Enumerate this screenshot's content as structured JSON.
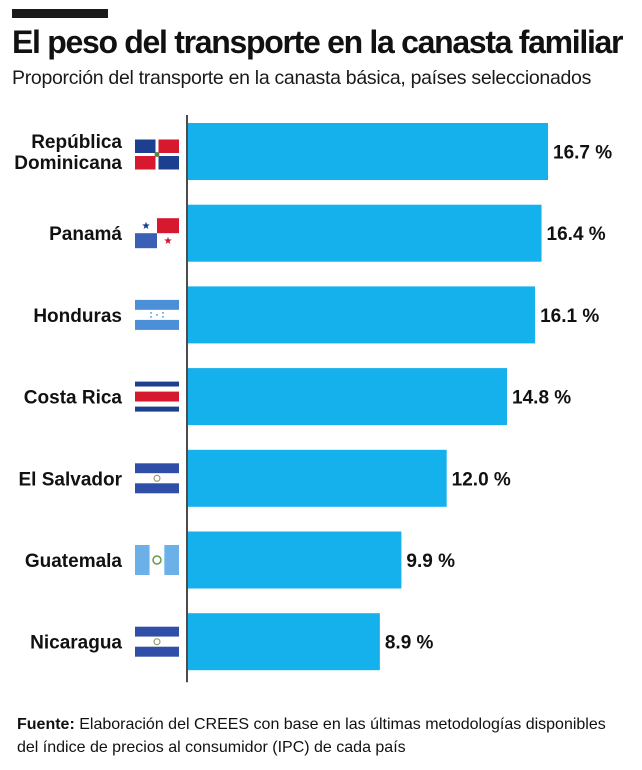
{
  "header": {
    "title": "El peso del transporte en la canasta familiar",
    "subtitle": "Proporción del transporte en la canasta básica, países seleccionados"
  },
  "colors": {
    "bar": "#15b1ec",
    "axis": "#111111",
    "text": "#111111"
  },
  "chart_data": {
    "type": "bar",
    "orientation": "horizontal",
    "title": "El peso del transporte en la canasta familiar",
    "subtitle": "Proporción del transporte en la canasta básica, países seleccionados",
    "categories": [
      [
        "República",
        "Dominicana"
      ],
      [
        "Panamá"
      ],
      [
        "Honduras"
      ],
      [
        "Costa Rica"
      ],
      [
        "El Salvador"
      ],
      [
        "Guatemala"
      ],
      [
        "Nicaragua"
      ]
    ],
    "flags": [
      "flag-dominican-republic",
      "flag-panama",
      "flag-honduras",
      "flag-costa-rica",
      "flag-el-salvador",
      "flag-guatemala",
      "flag-nicaragua"
    ],
    "values": [
      16.7,
      16.4,
      16.1,
      14.8,
      12.0,
      9.9,
      8.9
    ],
    "value_labels": [
      "16.7 %",
      "16.4 %",
      "16.1 %",
      "14.8 %",
      "12.0 %",
      "9.9 %",
      "8.9 %"
    ],
    "xlim": [
      0,
      16.7
    ],
    "xlabel": "",
    "ylabel": "",
    "grid": false,
    "legend": "none"
  },
  "source": {
    "label": "Fuente:",
    "text": " Elaboración del CREES con base en las últimas metodologías disponibles del índice de precios al consumidor (IPC) de cada país"
  }
}
